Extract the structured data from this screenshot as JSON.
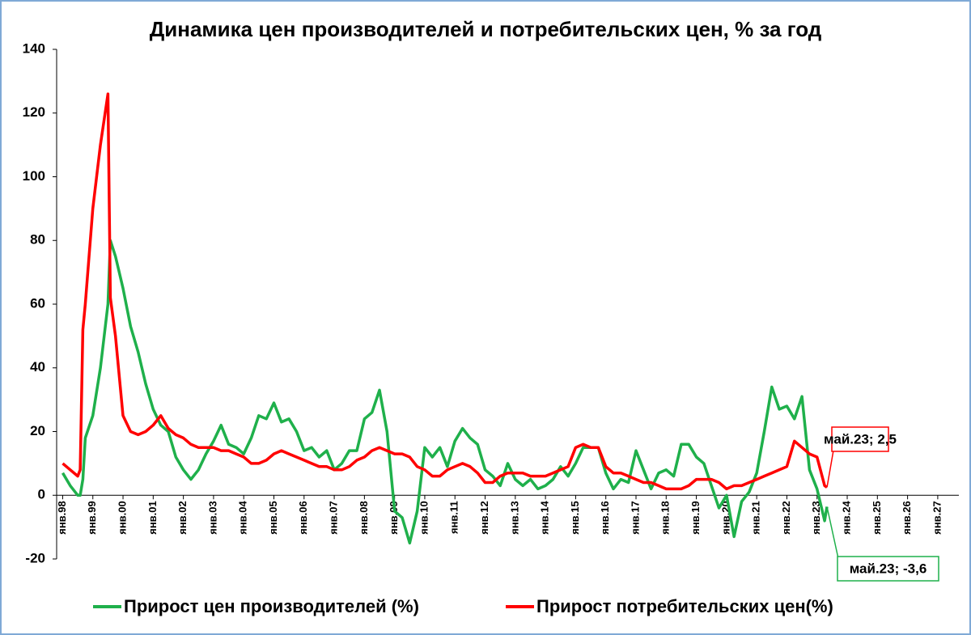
{
  "chart_data": {
    "type": "line",
    "title": "Динамика цен производителей и потребительских цен, % за год",
    "x": [
      1998,
      1998.25,
      1998.5,
      1998.58,
      1998.67,
      1998.75,
      1999,
      1999.25,
      1999.5,
      1999.58,
      1999.75,
      2000,
      2000.25,
      2000.5,
      2000.75,
      2001,
      2001.25,
      2001.5,
      2001.75,
      2002,
      2002.25,
      2002.5,
      2002.75,
      2003,
      2003.25,
      2003.5,
      2003.75,
      2004,
      2004.25,
      2004.5,
      2004.75,
      2005,
      2005.25,
      2005.5,
      2005.75,
      2006,
      2006.25,
      2006.5,
      2006.75,
      2007,
      2007.25,
      2007.5,
      2007.75,
      2008,
      2008.25,
      2008.5,
      2008.75,
      2009,
      2009.25,
      2009.5,
      2009.75,
      2010,
      2010.25,
      2010.5,
      2010.75,
      2011,
      2011.25,
      2011.5,
      2011.75,
      2012,
      2012.25,
      2012.5,
      2012.75,
      2013,
      2013.25,
      2013.5,
      2013.75,
      2014,
      2014.25,
      2014.5,
      2014.75,
      2015,
      2015.25,
      2015.5,
      2015.75,
      2016,
      2016.25,
      2016.5,
      2016.75,
      2017,
      2017.25,
      2017.5,
      2017.75,
      2018,
      2018.25,
      2018.5,
      2018.75,
      2019,
      2019.25,
      2019.5,
      2019.75,
      2020,
      2020.25,
      2020.5,
      2020.75,
      2021,
      2021.25,
      2021.5,
      2021.75,
      2022,
      2022.25,
      2022.5,
      2022.75,
      2023,
      2023.25,
      2023.33
    ],
    "series": [
      {
        "name": "Прирост цен производителей (%)",
        "color": "#1fb04b",
        "values": [
          7,
          3,
          0,
          0,
          5,
          18,
          25,
          40,
          60,
          80,
          75,
          65,
          53,
          45,
          35,
          27,
          22,
          20,
          12,
          8,
          5,
          8,
          13,
          17,
          22,
          16,
          15,
          13,
          18,
          25,
          24,
          29,
          23,
          24,
          20,
          14,
          15,
          12,
          14,
          8,
          10,
          14,
          14,
          24,
          26,
          33,
          20,
          -5,
          -7,
          -15,
          -5,
          15,
          12,
          15,
          9,
          17,
          21,
          18,
          16,
          8,
          6,
          3,
          10,
          5,
          3,
          5,
          2,
          3,
          5,
          9,
          6,
          10,
          15,
          15,
          15,
          7,
          2,
          5,
          4,
          14,
          8,
          2,
          7,
          8,
          6,
          16,
          16,
          12,
          10,
          3,
          -4,
          0,
          -13,
          -2,
          1,
          7,
          20,
          34,
          27,
          28,
          24,
          31,
          8,
          2,
          -8,
          -3.6
        ]
      },
      {
        "name": "Прирост потребительских цен(%)",
        "color": "#ff0000",
        "values": [
          10,
          8,
          6,
          8,
          52,
          60,
          90,
          110,
          126,
          62,
          50,
          25,
          20,
          19,
          20,
          22,
          25,
          21,
          19,
          18,
          16,
          15,
          15,
          15,
          14,
          14,
          13,
          12,
          10,
          10,
          11,
          13,
          14,
          13,
          12,
          11,
          10,
          9,
          9,
          8,
          8,
          9,
          11,
          12,
          14,
          15,
          14,
          13,
          13,
          12,
          9,
          8,
          6,
          6,
          8,
          9,
          10,
          9,
          7,
          4,
          4,
          6,
          7,
          7,
          7,
          6,
          6,
          6,
          7,
          8,
          9,
          15,
          16,
          15,
          15,
          9,
          7,
          7,
          6,
          5,
          4,
          4,
          3,
          2,
          2,
          2,
          3,
          5,
          5,
          5,
          4,
          2,
          3,
          3,
          4,
          5,
          6,
          7,
          8,
          9,
          17,
          15,
          13,
          12,
          3,
          2.5
        ]
      }
    ],
    "annotations": [
      {
        "text": "май.23; 2,5",
        "series": 1
      },
      {
        "text": "май.23; -3,6",
        "series": 0
      }
    ],
    "xlim": [
      1997.8,
      2027.7
    ],
    "xticks": [
      {
        "value": 1998,
        "label": "янв.98"
      },
      {
        "value": 1999,
        "label": "янв.99"
      },
      {
        "value": 2000,
        "label": "янв.00"
      },
      {
        "value": 2001,
        "label": "янв.01"
      },
      {
        "value": 2002,
        "label": "янв.02"
      },
      {
        "value": 2003,
        "label": "янв.03"
      },
      {
        "value": 2004,
        "label": "янв.04"
      },
      {
        "value": 2005,
        "label": "янв.05"
      },
      {
        "value": 2006,
        "label": "янв.06"
      },
      {
        "value": 2007,
        "label": "янв.07"
      },
      {
        "value": 2008,
        "label": "янв.08"
      },
      {
        "value": 2009,
        "label": "янв.09"
      },
      {
        "value": 2010,
        "label": "янв.10"
      },
      {
        "value": 2011,
        "label": "янв.11"
      },
      {
        "value": 2012,
        "label": "янв.12"
      },
      {
        "value": 2013,
        "label": "янв.13"
      },
      {
        "value": 2014,
        "label": "янв.14"
      },
      {
        "value": 2015,
        "label": "янв.15"
      },
      {
        "value": 2016,
        "label": "янв.16"
      },
      {
        "value": 2017,
        "label": "янв.17"
      },
      {
        "value": 2018,
        "label": "янв.18"
      },
      {
        "value": 2019,
        "label": "янв.19"
      },
      {
        "value": 2020,
        "label": "янв.20"
      },
      {
        "value": 2021,
        "label": "янв.21"
      },
      {
        "value": 2022,
        "label": "янв.22"
      },
      {
        "value": 2023,
        "label": "янв.23"
      },
      {
        "value": 2024,
        "label": "янв.24"
      },
      {
        "value": 2025,
        "label": "янв.25"
      },
      {
        "value": 2026,
        "label": "янв.26"
      },
      {
        "value": 2027,
        "label": "янв.27"
      }
    ],
    "ylim": [
      -20,
      140
    ],
    "yticks": [
      -20,
      0,
      20,
      40,
      60,
      80,
      100,
      120,
      140
    ],
    "grid": false,
    "legend": "bottom"
  }
}
